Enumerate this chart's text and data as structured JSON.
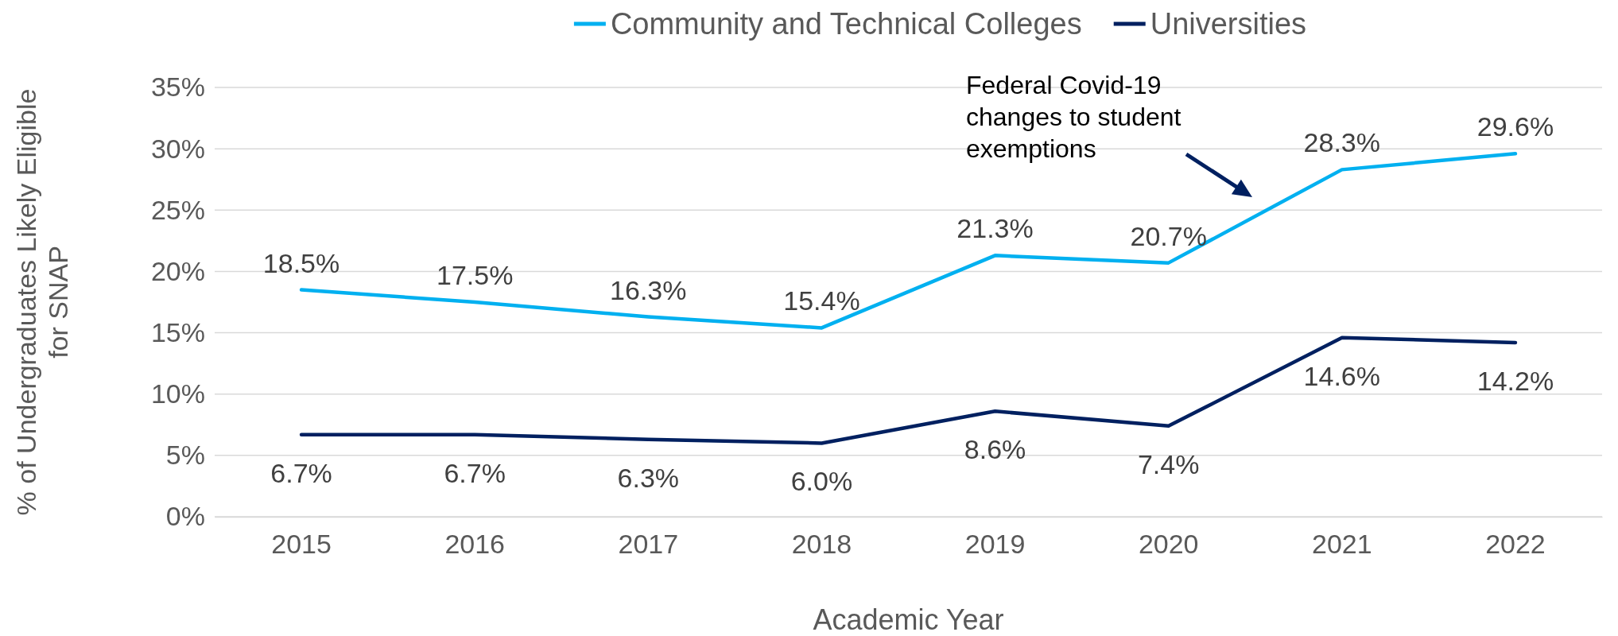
{
  "chart_data": {
    "type": "line",
    "xlabel": "Academic Year",
    "ylabel": "% of Undergraduates Likely Eligible for SNAP",
    "categories": [
      "2015",
      "2016",
      "2017",
      "2018",
      "2019",
      "2020",
      "2021",
      "2022"
    ],
    "series": [
      {
        "name": "Community and Technical Colleges",
        "color": "#00b0f0",
        "values": [
          18.5,
          17.5,
          16.3,
          15.4,
          21.3,
          20.7,
          28.3,
          29.6
        ],
        "value_labels": [
          "18.5%",
          "17.5%",
          "16.3%",
          "15.4%",
          "21.3%",
          "20.7%",
          "28.3%",
          "29.6%"
        ]
      },
      {
        "name": "Universities",
        "color": "#002060",
        "values": [
          6.7,
          6.7,
          6.3,
          6.0,
          8.6,
          7.4,
          14.6,
          14.2
        ],
        "value_labels": [
          "6.7%",
          "6.7%",
          "6.3%",
          "6.0%",
          "8.6%",
          "7.4%",
          "14.6%",
          "14.2%"
        ]
      }
    ],
    "ylim": [
      0,
      35
    ],
    "yticks": [
      {
        "value": 0,
        "label": "0%"
      },
      {
        "value": 5,
        "label": "5%"
      },
      {
        "value": 10,
        "label": "10%"
      },
      {
        "value": 15,
        "label": "15%"
      },
      {
        "value": 20,
        "label": "20%"
      },
      {
        "value": 25,
        "label": "25%"
      },
      {
        "value": 30,
        "label": "30%"
      },
      {
        "value": 35,
        "label": "35%"
      }
    ],
    "grid": "y",
    "legend": "top",
    "annotations": [
      "Federal Covid-19 changes to student exemptions"
    ]
  }
}
